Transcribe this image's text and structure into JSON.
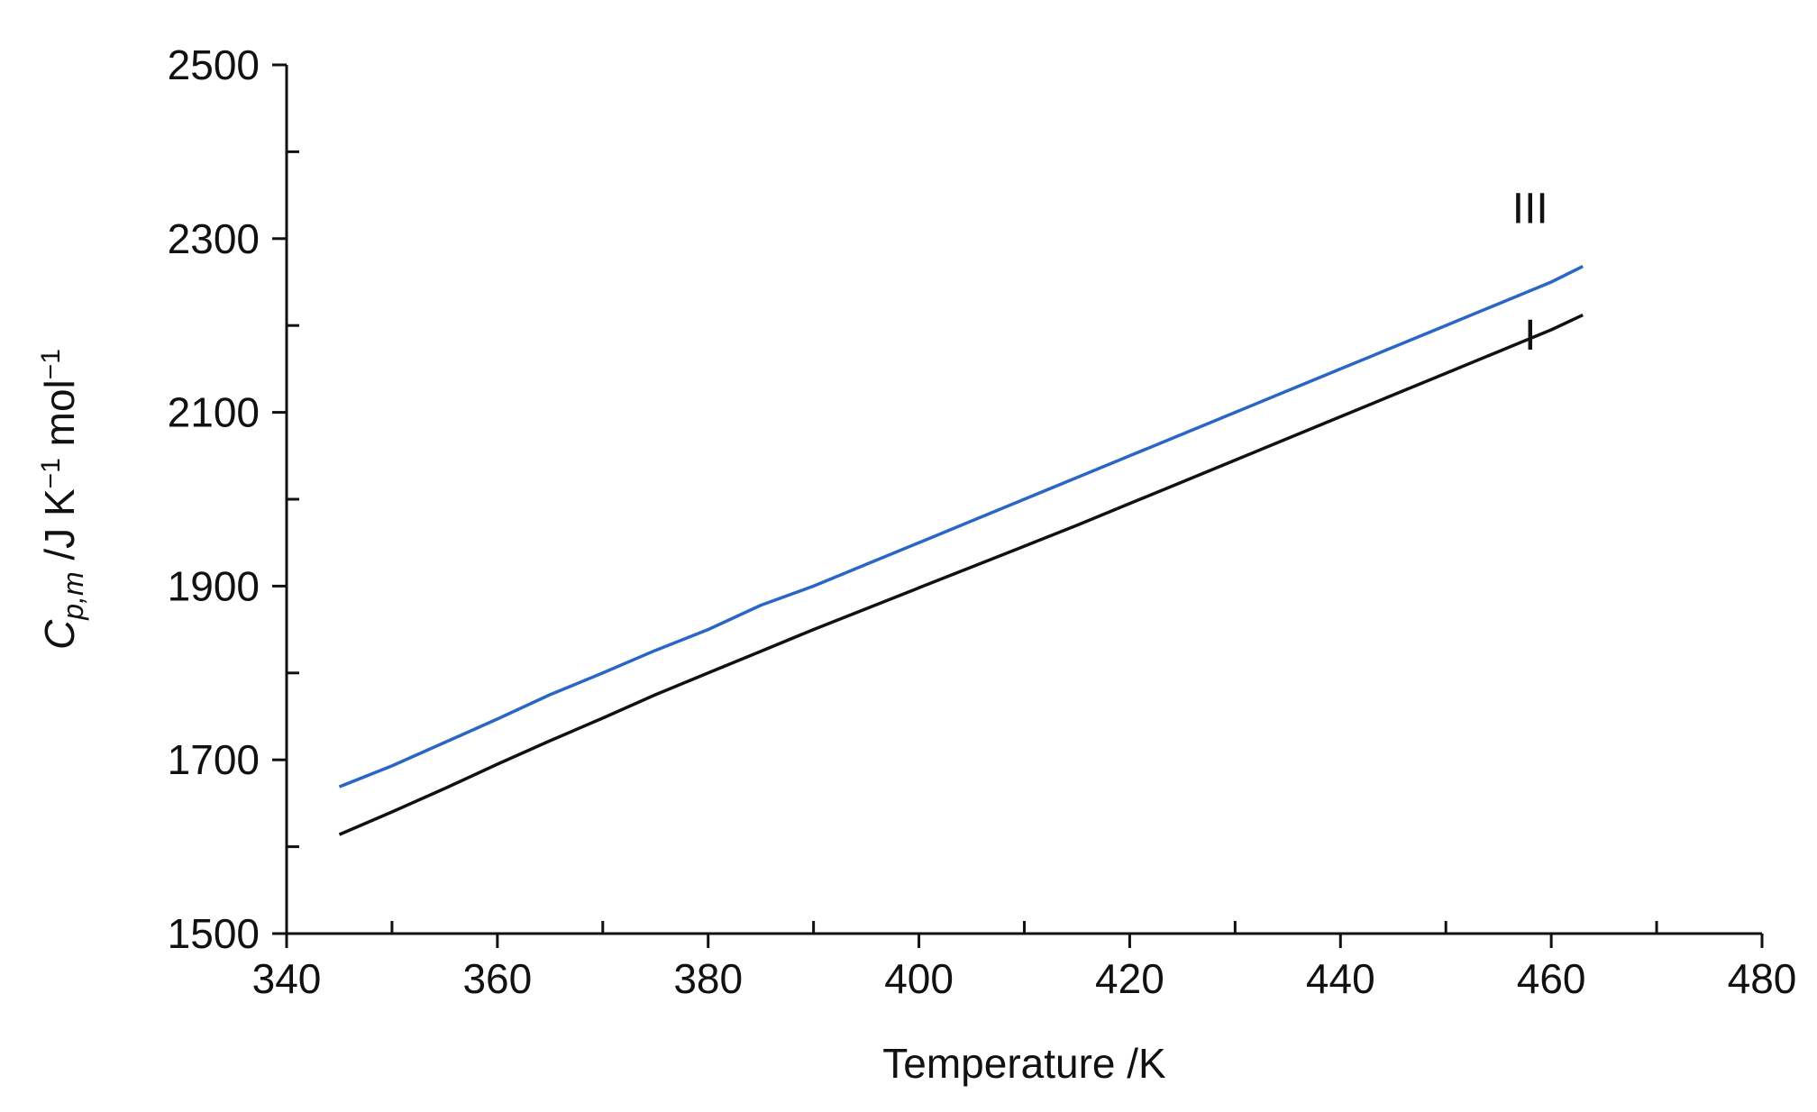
{
  "chart_data": {
    "type": "line",
    "title": "",
    "xlabel": "Temperature /K",
    "ylabel": {
      "base": "C",
      "subscript": "p,m",
      "units": " /J K",
      "exp1": "−1",
      "units2": " mol",
      "exp2": "−1"
    },
    "xlim": [
      340,
      480
    ],
    "ylim": [
      1500,
      2500
    ],
    "xticks": [
      340,
      360,
      380,
      400,
      420,
      440,
      460,
      480
    ],
    "xminor": [
      350,
      370,
      390,
      410,
      430,
      450,
      470
    ],
    "yticks": [
      1500,
      1700,
      1900,
      2100,
      2300,
      2500
    ],
    "yminor": [
      1600,
      1800,
      2000,
      2200,
      2400
    ],
    "grid": false,
    "series": [
      {
        "name": "III",
        "color": "#2a66c4",
        "x": [
          345,
          350,
          355,
          360,
          365,
          370,
          375,
          380,
          385,
          390,
          395,
          400,
          405,
          410,
          415,
          420,
          425,
          430,
          435,
          440,
          445,
          450,
          455,
          460,
          463
        ],
        "y": [
          1669,
          1693,
          1720,
          1747,
          1775,
          1800,
          1826,
          1850,
          1878,
          1900,
          1925,
          1950,
          1975,
          2000,
          2025,
          2050,
          2075,
          2100,
          2125,
          2150,
          2175,
          2200,
          2225,
          2250,
          2268
        ],
        "label_at": [
          458,
          2318
        ]
      },
      {
        "name": "I",
        "color": "#111111",
        "x": [
          345,
          350,
          355,
          360,
          365,
          370,
          375,
          380,
          385,
          390,
          395,
          400,
          405,
          410,
          415,
          420,
          425,
          430,
          435,
          440,
          445,
          450,
          455,
          460,
          463
        ],
        "y": [
          1614,
          1640,
          1667,
          1695,
          1722,
          1748,
          1775,
          1800,
          1825,
          1850,
          1874,
          1898,
          1922,
          1946,
          1970,
          1995,
          2020,
          2045,
          2070,
          2095,
          2120,
          2145,
          2170,
          2195,
          2212
        ],
        "label_at": [
          458,
          2172
        ]
      }
    ]
  }
}
